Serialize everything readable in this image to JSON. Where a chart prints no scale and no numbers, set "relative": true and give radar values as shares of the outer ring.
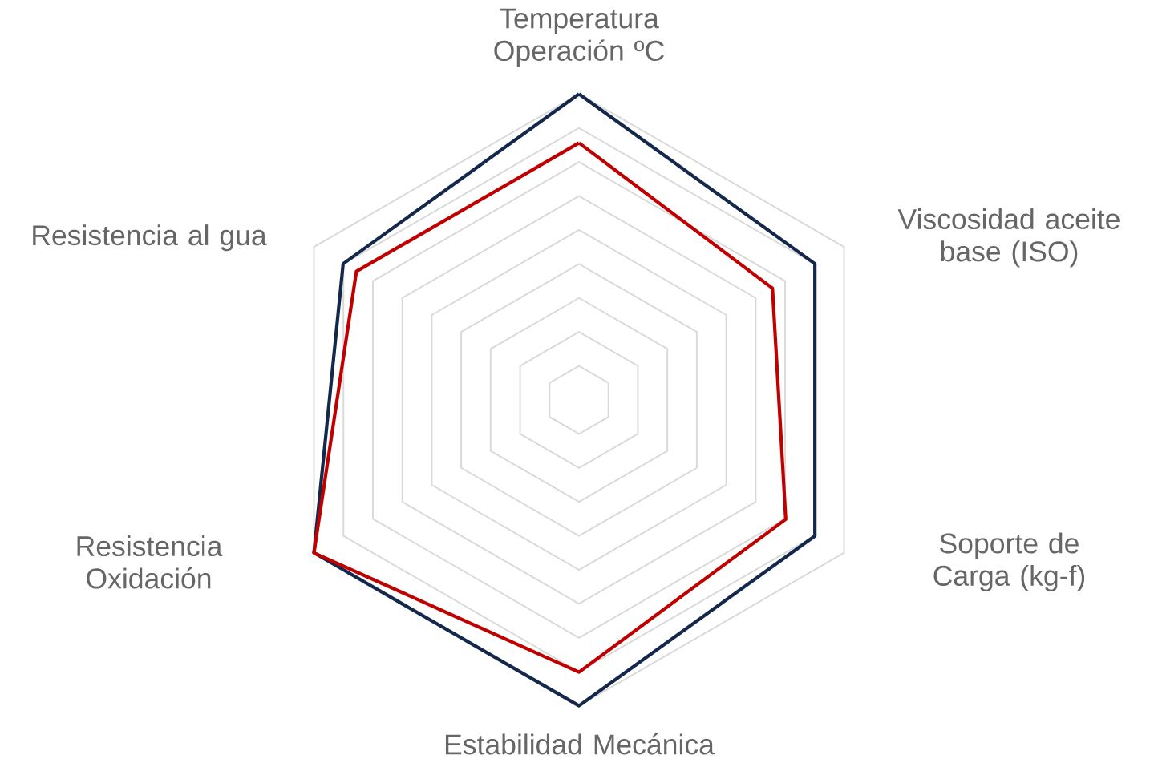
{
  "chart_data": {
    "type": "radar",
    "relative": true,
    "grid": true,
    "categories": [
      "Temperatura Operación  ºC",
      "Viscosidad aceite base (ISO)",
      "Soporte de Carga (kg-f)",
      "Estabilidad Mecánica",
      "Resistencia Oxidación",
      "Resistencia al gua"
    ],
    "series": [
      {
        "color": "#14284b",
        "values": [
          1.0,
          0.89,
          0.89,
          1.0,
          1.0,
          0.89
        ]
      },
      {
        "color": "#c00000",
        "values": [
          0.84,
          0.73,
          0.78,
          0.89,
          1.0,
          0.84
        ]
      }
    ]
  }
}
